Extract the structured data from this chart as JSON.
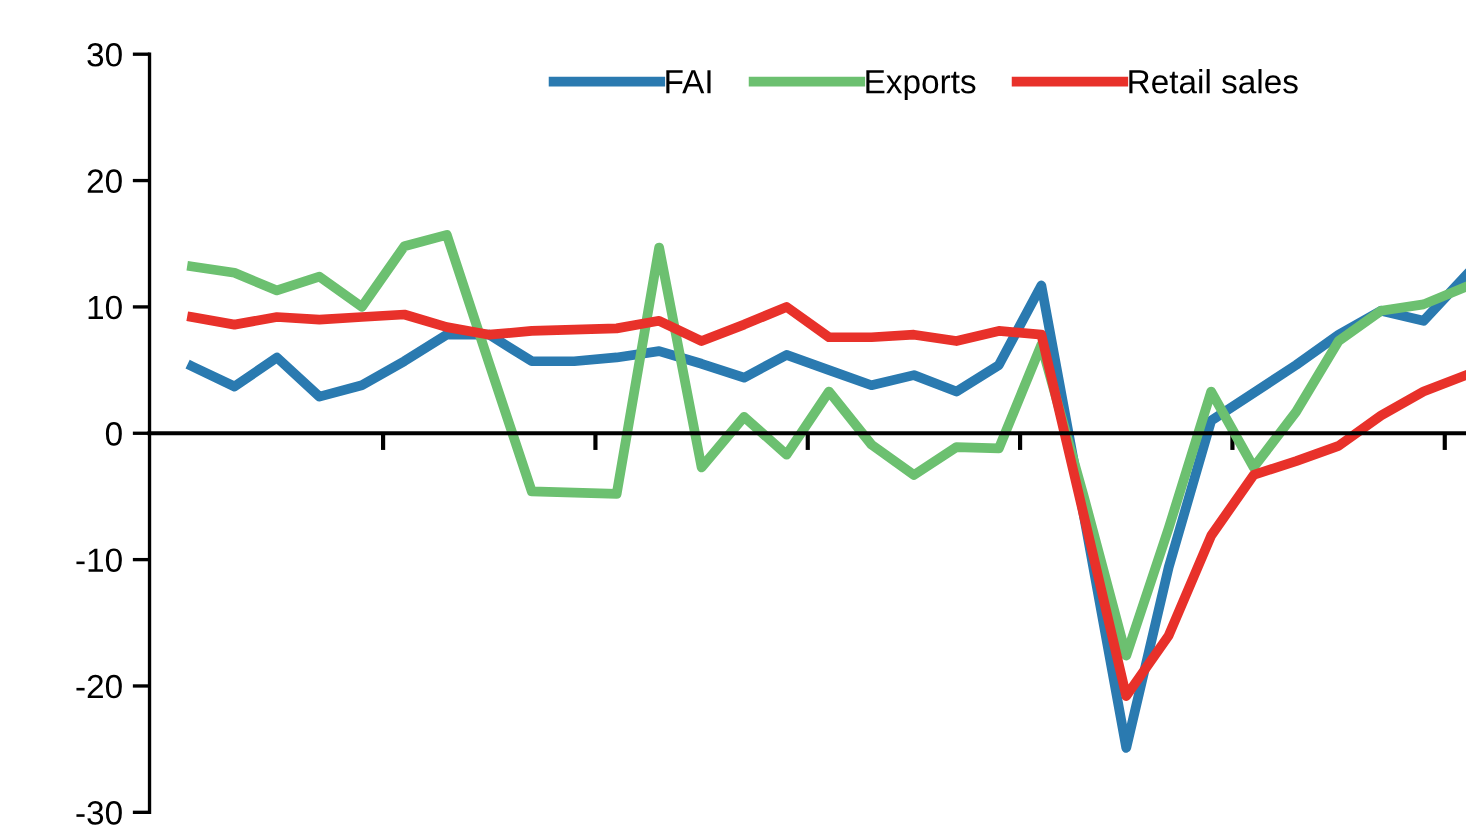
{
  "chart_data": {
    "type": "line",
    "categories": [
      null,
      null,
      null,
      null,
      null,
      null,
      null,
      null,
      null,
      null,
      null,
      null,
      null,
      null,
      null,
      null,
      null,
      null,
      null,
      null,
      null,
      null,
      null,
      null,
      null,
      null,
      null,
      null,
      null,
      null,
      null
    ],
    "series": [
      {
        "name": "FAI",
        "color": "#2a7ab0",
        "values": [
          5.3,
          3.7,
          6.0,
          2.9,
          3.8,
          5.7,
          7.8,
          7.8,
          5.7,
          5.7,
          6.0,
          6.5,
          5.5,
          4.4,
          6.2,
          5.0,
          3.8,
          4.6,
          3.3,
          5.4,
          11.7,
          -6.5,
          -24.9,
          -10.6,
          1.0,
          3.2,
          5.4,
          7.8,
          9.7,
          8.9,
          12.5
        ]
      },
      {
        "name": "Exports",
        "color": "#6cc070",
        "values": [
          13.2,
          12.7,
          11.3,
          12.4,
          10.0,
          14.8,
          15.7,
          5.5,
          -4.6,
          -4.7,
          -4.8,
          14.7,
          -2.7,
          1.3,
          -1.7,
          3.3,
          -0.9,
          -3.3,
          -1.1,
          -1.2,
          7.0,
          -5.0,
          -17.6,
          -7.5,
          3.3,
          -2.7,
          1.7,
          7.3,
          9.7,
          10.2,
          11.6
        ]
      },
      {
        "name": "Retail sales",
        "color": "#e8312a",
        "values": [
          9.2,
          8.6,
          9.2,
          9.0,
          9.2,
          9.4,
          8.4,
          7.8,
          8.1,
          8.2,
          8.3,
          8.9,
          7.3,
          8.6,
          10.0,
          7.6,
          7.6,
          7.8,
          7.3,
          8.1,
          7.8,
          -6.5,
          -20.8,
          -16.0,
          -8.1,
          -3.3,
          -2.2,
          -1.0,
          1.4,
          3.3,
          4.6
        ]
      }
    ],
    "ylim": [
      -30,
      30
    ],
    "yticks": [
      -30,
      -20,
      -10,
      0,
      10,
      20,
      30
    ],
    "tick_labels": "y",
    "legend": "top",
    "marker": "none",
    "line_style": "solid"
  }
}
